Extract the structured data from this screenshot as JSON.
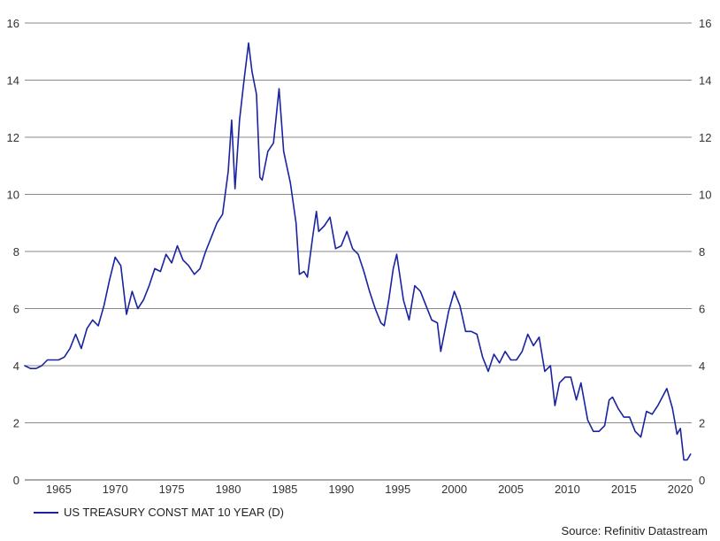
{
  "chart_data": {
    "type": "line",
    "title": "",
    "xlabel": "",
    "ylabel": "",
    "xlim": [
      1962,
      2021
    ],
    "ylim": [
      0,
      16
    ],
    "x_ticks": [
      "1965",
      "1970",
      "1975",
      "1980",
      "1985",
      "1990",
      "1995",
      "2000",
      "2005",
      "2010",
      "2015",
      "2020"
    ],
    "y_ticks": [
      "0",
      "2",
      "4",
      "6",
      "8",
      "10",
      "12",
      "14",
      "16"
    ],
    "grid": "horizontal",
    "axis_labels_both_sides": true,
    "legend_position": "bottom-left",
    "series": [
      {
        "name": "US TREASURY CONST MAT 10 YEAR (D)",
        "color": "#1a23a0",
        "x": [
          1962.0,
          1962.5,
          1963.0,
          1963.5,
          1964.0,
          1964.5,
          1965.0,
          1965.5,
          1966.0,
          1966.5,
          1967.0,
          1967.5,
          1968.0,
          1968.5,
          1969.0,
          1969.5,
          1970.0,
          1970.5,
          1971.0,
          1971.5,
          1972.0,
          1972.5,
          1973.0,
          1973.5,
          1974.0,
          1974.5,
          1975.0,
          1975.5,
          1976.0,
          1976.5,
          1977.0,
          1977.5,
          1978.0,
          1978.5,
          1979.0,
          1979.5,
          1980.0,
          1980.3,
          1980.6,
          1981.0,
          1981.4,
          1981.8,
          1982.1,
          1982.5,
          1982.8,
          1983.0,
          1983.5,
          1984.0,
          1984.5,
          1984.9,
          1985.5,
          1986.0,
          1986.3,
          1986.7,
          1987.0,
          1987.5,
          1987.8,
          1988.0,
          1988.5,
          1989.0,
          1989.5,
          1990.0,
          1990.5,
          1991.0,
          1991.5,
          1992.0,
          1992.5,
          1993.0,
          1993.5,
          1993.8,
          1994.2,
          1994.6,
          1994.9,
          1995.5,
          1996.0,
          1996.5,
          1997.0,
          1997.5,
          1998.0,
          1998.5,
          1998.8,
          1999.5,
          2000.0,
          2000.5,
          2001.0,
          2001.5,
          2002.0,
          2002.5,
          2003.0,
          2003.5,
          2004.0,
          2004.5,
          2005.0,
          2005.5,
          2006.0,
          2006.5,
          2007.0,
          2007.5,
          2008.0,
          2008.5,
          2008.9,
          2009.3,
          2009.8,
          2010.3,
          2010.8,
          2011.2,
          2011.8,
          2012.3,
          2012.8,
          2013.3,
          2013.7,
          2014.0,
          2014.5,
          2015.0,
          2015.5,
          2016.0,
          2016.5,
          2017.0,
          2017.5,
          2018.0,
          2018.8,
          2019.3,
          2019.7,
          2020.0,
          2020.3,
          2020.6,
          2020.9
        ],
        "values": [
          4.0,
          3.9,
          3.9,
          4.0,
          4.2,
          4.2,
          4.2,
          4.3,
          4.6,
          5.1,
          4.6,
          5.3,
          5.6,
          5.4,
          6.1,
          7.0,
          7.8,
          7.5,
          5.8,
          6.6,
          6.0,
          6.3,
          6.8,
          7.4,
          7.3,
          7.9,
          7.6,
          8.2,
          7.7,
          7.5,
          7.2,
          7.4,
          8.0,
          8.5,
          9.0,
          9.3,
          10.8,
          12.6,
          10.2,
          12.6,
          14.0,
          15.3,
          14.3,
          13.5,
          10.6,
          10.5,
          11.5,
          11.8,
          13.7,
          11.5,
          10.4,
          9.0,
          7.2,
          7.3,
          7.1,
          8.6,
          9.4,
          8.7,
          8.9,
          9.2,
          8.1,
          8.2,
          8.7,
          8.1,
          7.9,
          7.3,
          6.6,
          6.0,
          5.5,
          5.4,
          6.3,
          7.4,
          7.9,
          6.3,
          5.6,
          6.8,
          6.6,
          6.1,
          5.6,
          5.5,
          4.5,
          5.9,
          6.6,
          6.1,
          5.2,
          5.2,
          5.1,
          4.3,
          3.8,
          4.4,
          4.1,
          4.5,
          4.2,
          4.2,
          4.5,
          5.1,
          4.7,
          5.0,
          3.8,
          4.0,
          2.6,
          3.4,
          3.6,
          3.6,
          2.8,
          3.4,
          2.1,
          1.7,
          1.7,
          1.9,
          2.8,
          2.9,
          2.5,
          2.2,
          2.2,
          1.7,
          1.5,
          2.4,
          2.3,
          2.6,
          3.2,
          2.5,
          1.6,
          1.8,
          0.7,
          0.7,
          0.9
        ]
      }
    ]
  },
  "legend": {
    "label": "US TREASURY CONST MAT 10 YEAR (D)"
  },
  "footer": {
    "source": "Source: Refinitiv Datastream"
  }
}
